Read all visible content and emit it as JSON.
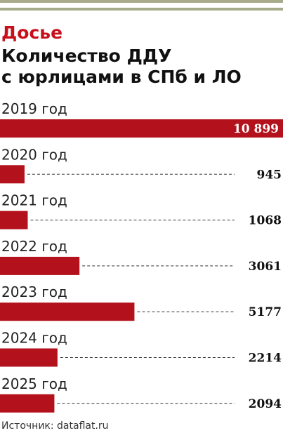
{
  "chart_data": {
    "type": "bar",
    "orientation": "horizontal",
    "kicker": "Досье",
    "title": [
      "Количество ДДУ",
      "с юрлицами в СПб и ЛО"
    ],
    "categories": [
      "2019 год",
      "2020 год",
      "2021 год",
      "2022 год",
      "2023 год",
      "2024 год",
      "2025 год"
    ],
    "values": [
      10899,
      945,
      1068,
      3061,
      5177,
      2214,
      2094
    ],
    "value_labels": [
      "10 899",
      "945",
      "1068",
      "3061",
      "5177",
      "2214",
      "2094"
    ],
    "color": "#b3121c",
    "source": "Источник: dataflat.ru"
  }
}
